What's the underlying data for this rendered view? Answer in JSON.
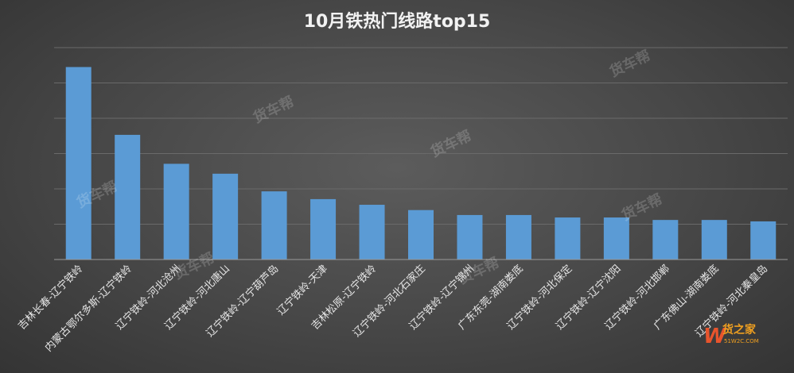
{
  "chart_data": {
    "type": "bar",
    "title": "10月铁热门线路top15",
    "categories": [
      "吉林长春-辽宁铁岭",
      "内蒙古鄂尔多斯-辽宁铁岭",
      "辽宁铁岭-河北沧州",
      "辽宁铁岭-河北唐山",
      "辽宁铁岭-辽宁葫芦岛",
      "辽宁铁岭-天津",
      "吉林松原-辽宁铁岭",
      "辽宁铁岭-河北石家庄",
      "辽宁铁岭-辽宁锦州",
      "广东东莞-湖南娄底",
      "辽宁铁岭-河北保定",
      "辽宁铁岭-辽宁沈阳",
      "辽宁铁岭-河北邯郸",
      "广东佛山-湖南娄底",
      "辽宁铁岭-河北秦皇岛"
    ],
    "values": [
      5.45,
      3.53,
      2.71,
      2.43,
      1.93,
      1.71,
      1.55,
      1.4,
      1.26,
      1.26,
      1.19,
      1.19,
      1.12,
      1.12,
      1.08
    ],
    "ylim": [
      0,
      6
    ],
    "y_ticks_labeled": false,
    "grid": true,
    "legend": "none",
    "bar_color": "#5b9bd5"
  },
  "watermark": "货车帮",
  "logo": {
    "text": "货之家",
    "sub": "51W2C.COM",
    "mark": "W"
  }
}
